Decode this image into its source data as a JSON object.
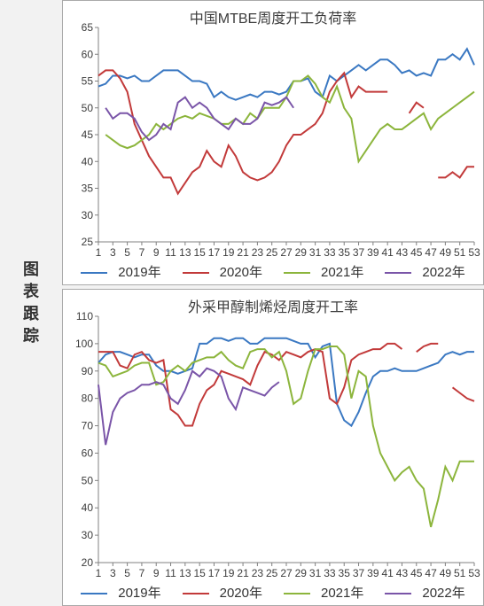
{
  "sidebar_label_chars": [
    "图",
    "表",
    "跟",
    "踪"
  ],
  "colors": {
    "y2019": "#3a78c2",
    "y2020": "#c23a3a",
    "y2021": "#8cb53c",
    "y2022": "#7a55a8",
    "axis": "#808080",
    "bg": "#f2f2f2",
    "panel_bg": "#ffffff",
    "text": "#3c3c3c"
  },
  "legend_labels": {
    "y2019": "2019年",
    "y2020": "2020年",
    "y2021": "2021年",
    "y2022": "2022年"
  },
  "chart1": {
    "title": "中国MTBE周度开工负荷率",
    "type": "line",
    "x_start": 1,
    "x_end": 53,
    "x_ticks": [
      1,
      3,
      5,
      7,
      9,
      11,
      13,
      15,
      17,
      19,
      21,
      23,
      25,
      27,
      29,
      31,
      33,
      35,
      37,
      39,
      41,
      43,
      45,
      47,
      49,
      51,
      53
    ],
    "y_min": 25,
    "y_max": 65,
    "y_step": 5,
    "y_ticks": [
      25,
      30,
      35,
      40,
      45,
      50,
      55,
      60,
      65
    ],
    "line_width": 2,
    "title_fontsize": 16,
    "tick_fontsize": 12,
    "series": {
      "y2019": [
        54,
        54.5,
        56,
        56,
        55.5,
        56,
        55,
        55,
        56,
        57,
        57,
        57,
        56,
        55,
        55,
        54.5,
        52,
        53,
        52,
        51.5,
        52,
        52.5,
        52,
        53,
        53,
        52.5,
        53,
        55,
        55,
        55.5,
        53,
        52,
        56,
        55,
        56,
        57,
        58,
        57,
        58,
        59,
        59,
        58,
        56.5,
        57,
        56,
        56.5,
        56,
        59,
        59,
        60,
        59,
        61,
        58
      ],
      "y2020": [
        56,
        57,
        57,
        55.5,
        53,
        47,
        44,
        41,
        39,
        37,
        37,
        34,
        36,
        38,
        39,
        42,
        40,
        39,
        43,
        41,
        38,
        37,
        36.5,
        37,
        38,
        40,
        43,
        45,
        45,
        46,
        47,
        49,
        53,
        55,
        56.5,
        52,
        54,
        53,
        53,
        53,
        53,
        null,
        null,
        49,
        51,
        50,
        null,
        37,
        37,
        38,
        37,
        39,
        39
      ],
      "y2021": [
        null,
        45,
        44,
        43,
        42.5,
        43,
        44,
        45,
        47,
        46,
        47,
        48,
        48.5,
        48,
        49,
        48.5,
        48,
        47,
        47,
        48,
        47,
        49,
        48,
        50,
        50,
        50,
        52,
        55,
        55,
        56,
        54.5,
        52,
        51,
        54,
        50,
        48,
        40,
        42,
        44,
        46,
        47,
        46,
        46,
        47,
        48,
        49,
        46,
        48,
        49,
        50,
        51,
        52,
        53
      ],
      "y2022": [
        null,
        50,
        48,
        49,
        49,
        48,
        45.5,
        44,
        45,
        47,
        46,
        51,
        52,
        50,
        51,
        50,
        48,
        47,
        46,
        48,
        47,
        47,
        48,
        51,
        50.5,
        51,
        52,
        50,
        null,
        null,
        null,
        null,
        null,
        null,
        null,
        null,
        null,
        null,
        null,
        null,
        null,
        null,
        null,
        null,
        null,
        null,
        null,
        null,
        null,
        null,
        null,
        null,
        null
      ]
    }
  },
  "chart2": {
    "title": "外采甲醇制烯烃周度开工率",
    "type": "line",
    "x_start": 1,
    "x_end": 53,
    "x_ticks": [
      1,
      3,
      5,
      7,
      9,
      11,
      13,
      15,
      17,
      19,
      21,
      23,
      25,
      27,
      29,
      31,
      33,
      35,
      37,
      39,
      41,
      43,
      45,
      47,
      49,
      51,
      53
    ],
    "y_min": 20,
    "y_max": 110,
    "y_step": 10,
    "y_ticks": [
      20,
      30,
      40,
      50,
      60,
      70,
      80,
      90,
      100,
      110
    ],
    "line_width": 2,
    "title_fontsize": 16,
    "tick_fontsize": 12,
    "series": {
      "y2019": [
        93,
        96,
        97,
        97,
        96,
        95,
        96,
        96,
        92,
        90,
        90,
        89,
        90,
        91,
        100,
        100,
        102,
        102,
        101,
        102,
        102,
        100,
        100,
        102,
        102,
        102,
        102,
        101,
        100,
        100,
        95,
        99,
        100,
        78,
        72,
        70,
        75,
        82,
        88,
        90,
        90,
        91,
        90,
        90,
        90,
        91,
        92,
        93,
        96,
        97,
        96,
        97,
        97
      ],
      "y2020": [
        97,
        97,
        97,
        92,
        91,
        96,
        97,
        94,
        93,
        94,
        76,
        74,
        70,
        70,
        78,
        83,
        85,
        90,
        89,
        88,
        87,
        85,
        92,
        97,
        96,
        94,
        97,
        96,
        95,
        97,
        98,
        97,
        80,
        78,
        84,
        94,
        96,
        97,
        98,
        98,
        100,
        100,
        98,
        null,
        97,
        99,
        100,
        100,
        null,
        84,
        82,
        80,
        79
      ],
      "y2021": [
        93,
        92,
        88,
        89,
        90,
        92,
        93,
        93,
        85,
        86,
        90,
        92,
        90,
        93,
        94,
        95,
        95,
        97,
        94,
        92,
        91,
        97,
        98,
        98,
        95,
        97,
        90,
        78,
        80,
        90,
        98,
        98,
        99,
        99,
        96,
        80,
        90,
        88,
        70,
        60,
        55,
        50,
        53,
        55,
        50,
        47,
        33,
        43,
        55,
        50,
        57,
        57,
        57
      ],
      "y2022": [
        85,
        63,
        75,
        80,
        82,
        83,
        85,
        85,
        86,
        85,
        80,
        78,
        83,
        90,
        88,
        91,
        90,
        88,
        80,
        76,
        84,
        83,
        82,
        81,
        84,
        86,
        null,
        null,
        null,
        null,
        null,
        null,
        null,
        null,
        null,
        null,
        null,
        null,
        null,
        null,
        null,
        null,
        null,
        null,
        null,
        null,
        null,
        null,
        null,
        null,
        null,
        null,
        null
      ]
    }
  }
}
